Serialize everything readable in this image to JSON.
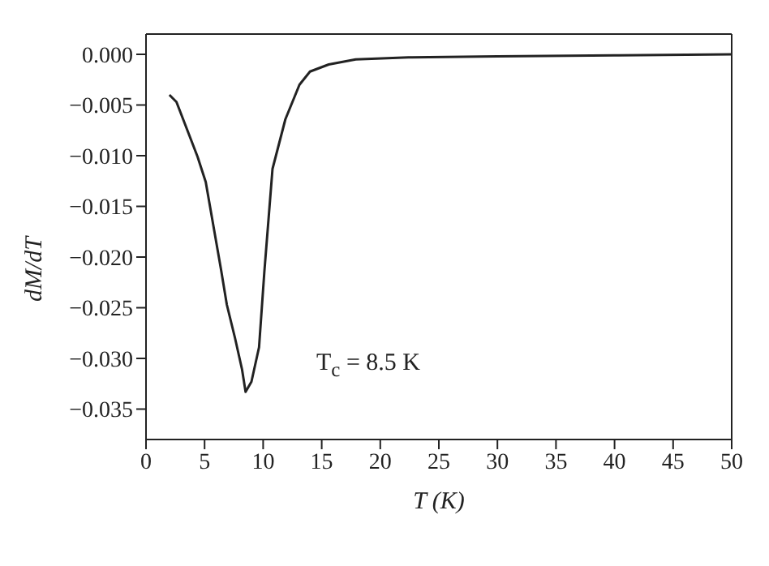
{
  "chart_data": {
    "type": "line",
    "xlabel": "T (K)",
    "ylabel": "dM/dT",
    "x": [
      2.0,
      2.6,
      4.4,
      5.1,
      6.4,
      6.9,
      7.6,
      8.2,
      8.5,
      9.0,
      9.65,
      10.1,
      10.8,
      11.9,
      13.1,
      14.0,
      15.6,
      17.9,
      22.4,
      30,
      40,
      50
    ],
    "series": [
      {
        "color": "#222222",
        "values": [
          -0.004,
          -0.0047,
          -0.0101,
          -0.0126,
          -0.0212,
          -0.0247,
          -0.028,
          -0.0311,
          -0.0333,
          -0.0323,
          -0.0289,
          -0.0215,
          -0.0113,
          -0.0064,
          -0.003,
          -0.0017,
          -0.001,
          -0.0005,
          -0.0003,
          -0.0002,
          -0.0001,
          0
        ]
      }
    ],
    "xlim": [
      0,
      50
    ],
    "xticks": [
      0,
      5,
      10,
      15,
      20,
      25,
      30,
      35,
      40,
      45,
      50
    ],
    "ylim": [
      -0.038,
      0.002
    ],
    "yticks": [
      {
        "value": 0,
        "label": "0.000"
      },
      {
        "value": -0.005,
        "label": "−0.005"
      },
      {
        "value": -0.01,
        "label": "−0.010"
      },
      {
        "value": -0.015,
        "label": "−0.015"
      },
      {
        "value": -0.02,
        "label": "−0.020"
      },
      {
        "value": -0.025,
        "label": "−0.025"
      },
      {
        "value": -0.03,
        "label": "−0.030"
      },
      {
        "value": -0.035,
        "label": "−0.035"
      }
    ],
    "annotations": [
      "T$_{c}$ = 8.5 K"
    ],
    "grid": false,
    "legend": false,
    "marker": "none",
    "line_style": "solid"
  }
}
